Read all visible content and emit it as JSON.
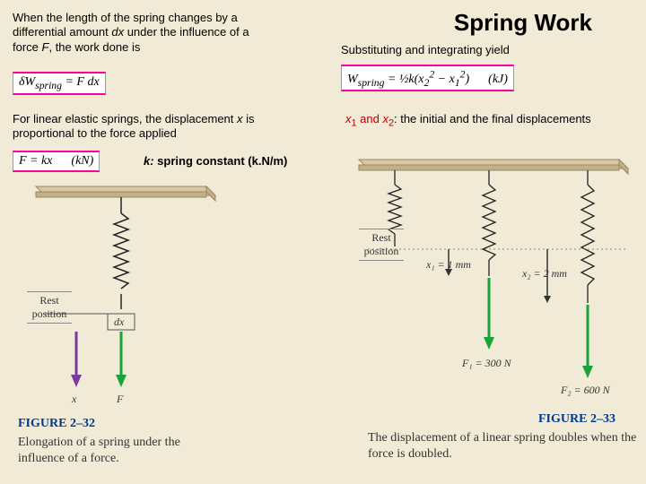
{
  "title": "Spring Work",
  "left": {
    "para1": "When the length of the spring changes by a differential amount <i>dx</i> under the influence of a force <i>F</i>, the work done is",
    "eq1": "δW<sub>spring</sub> = F dx",
    "para2": "For linear elastic springs, the displacement <i>x</i> is proportional to the force applied",
    "eq2": "F = kx &nbsp;&nbsp;&nbsp;&nbsp; (kN)",
    "kconst": "<i>k:</i> spring constant (k.N/m)"
  },
  "right": {
    "para1": "Substituting and integrating yield",
    "eq1": "W<sub>spring</sub> = ½k(x<sub>2</sub><sup>2</sup> − x<sub>1</sub><sup>2</sup>) &nbsp;&nbsp;&nbsp;&nbsp; (kJ)",
    "para2_html": "<span class='red'><i>x</i><sub>1</sub> and <i>x</i><sub>2</sub></span>: the initial and the final displacements"
  },
  "fig32": {
    "label": "FIGURE 2–32",
    "caption": "Elongation of a spring under the influence of a force.",
    "rest": "Rest position",
    "dx": "dx",
    "x": "x",
    "F": "F",
    "blockColor": "#d9c7a3",
    "springColor": "#222",
    "xArrowColor": "#7a3b9e",
    "fArrowColor": "#1aa33b"
  },
  "fig33": {
    "label": "FIGURE 2–33",
    "caption": "The displacement of a linear spring doubles when the force is doubled.",
    "rest": "Rest position",
    "x1label": "x₁ = 1 mm",
    "x2label": "x₂ = 2 mm",
    "f1label": "F₁ = 300 N",
    "f2label": "F₂ = 600 N",
    "blockColor": "#d9c7a3",
    "springColor": "#222",
    "arrowColor": "#1aa33b"
  }
}
